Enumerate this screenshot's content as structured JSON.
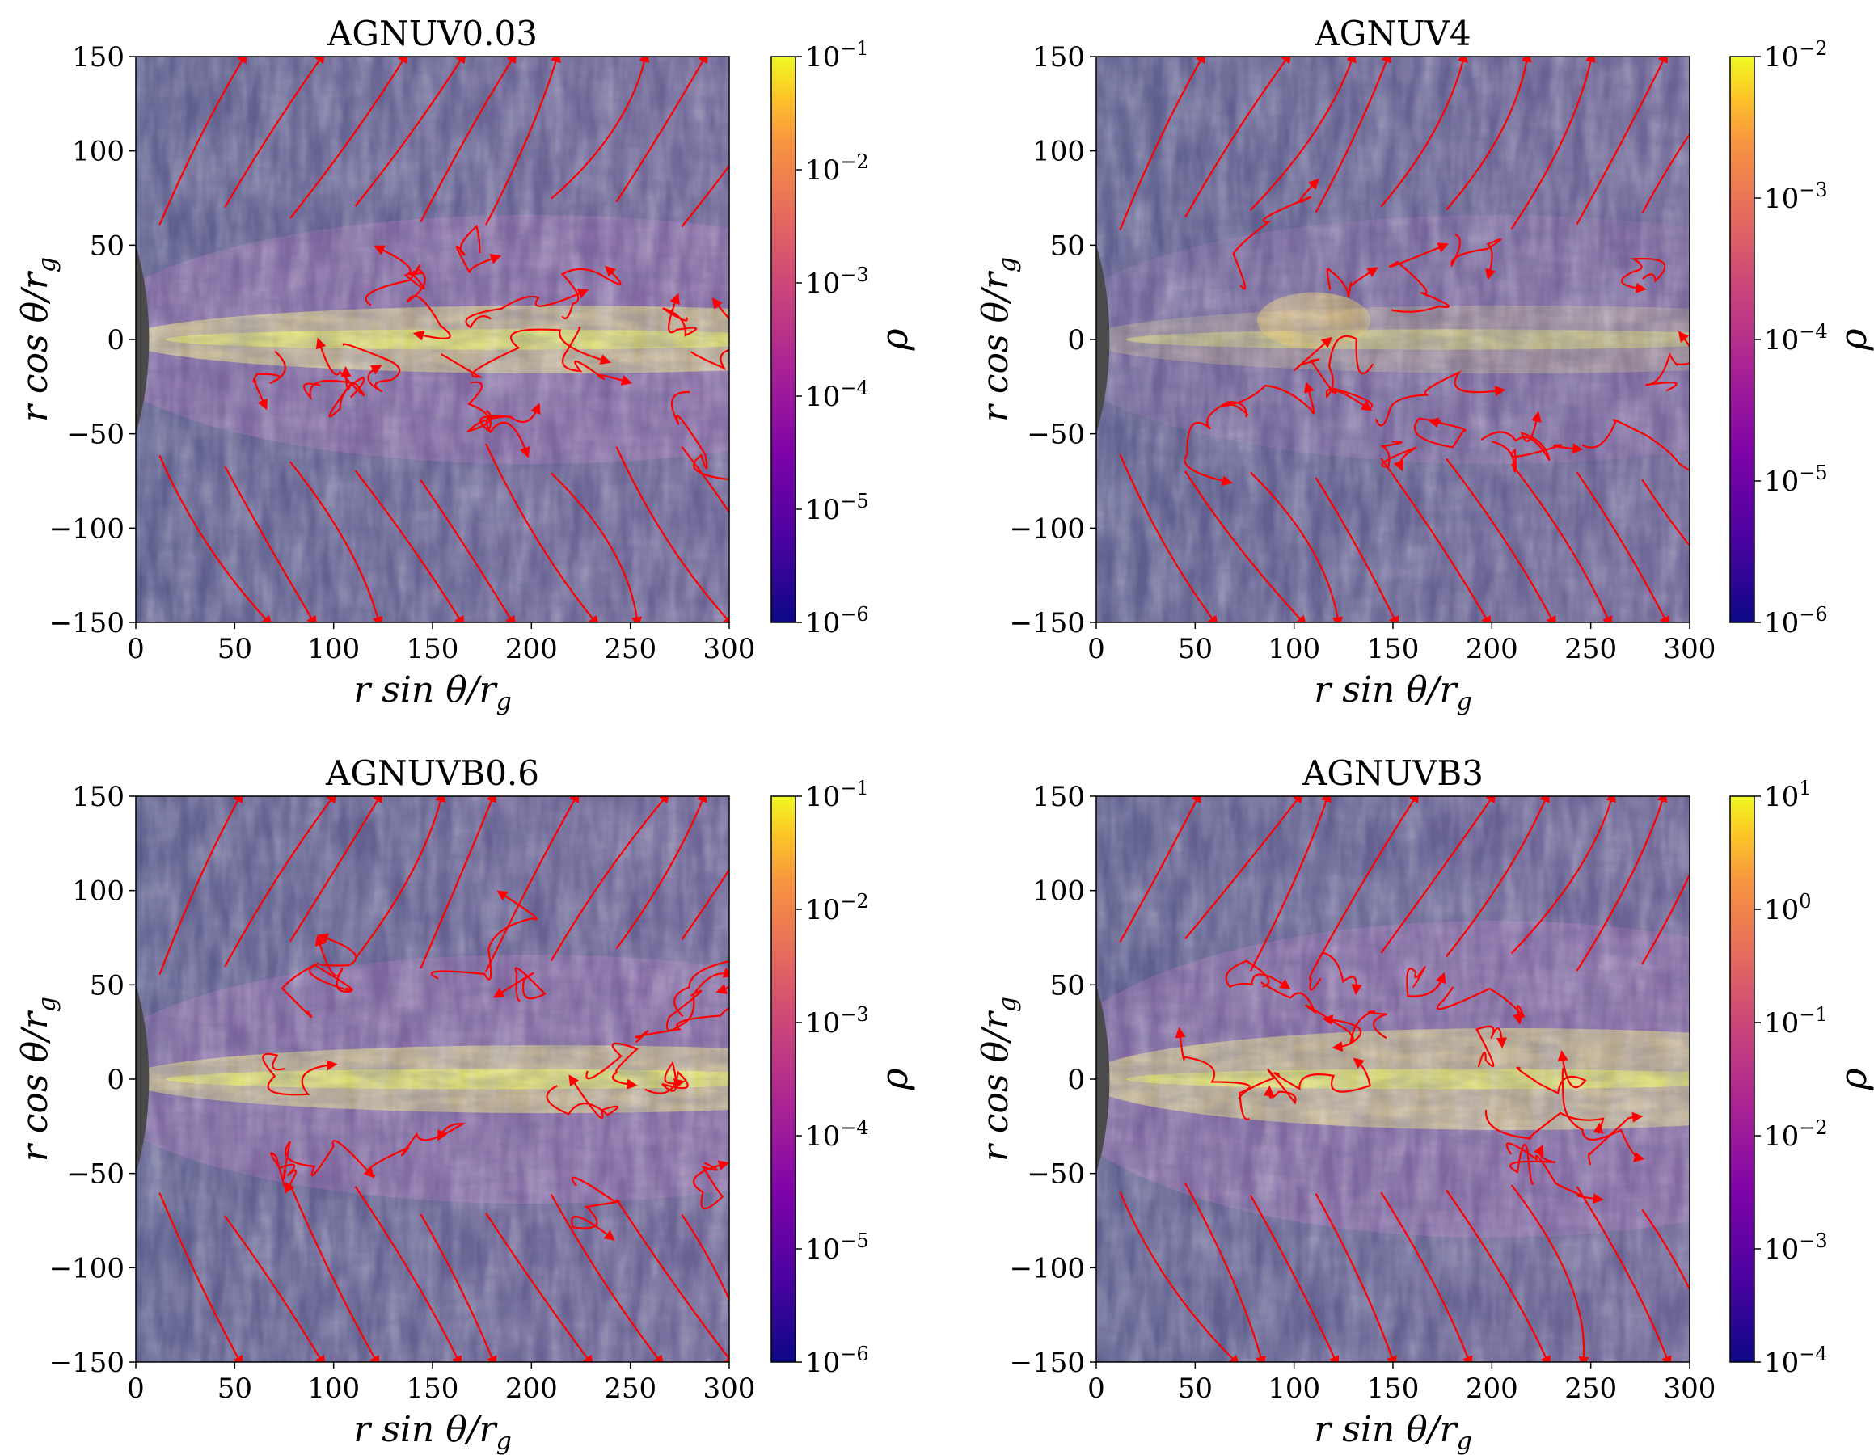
{
  "chart_data": [
    {
      "type": "heatmap",
      "title": "AGNUV0.03",
      "xlabel": "r sin θ/r_g",
      "ylabel": "r cos θ/r_g",
      "xlim": [
        0,
        300
      ],
      "ylim": [
        -150,
        150
      ],
      "xticks": [
        "0",
        "50",
        "100",
        "150",
        "200",
        "250",
        "300"
      ],
      "yticks": [
        "150",
        "100",
        "50",
        "0",
        "−50",
        "−100",
        "−150"
      ],
      "colorbar": {
        "label": "ρ",
        "scale": "log",
        "min_exp": -6,
        "max_exp": -1,
        "ticks": [
          "10^-1",
          "10^-2",
          "10^-3",
          "10^-4",
          "10^-5",
          "10^-6"
        ],
        "colormap": "plasma"
      },
      "inner_boundary_radius": 50,
      "annotations": [
        "red magnetic field lines with arrows",
        "line-integral-convolution texture"
      ]
    },
    {
      "type": "heatmap",
      "title": "AGNUV4",
      "xlabel": "r sin θ/r_g",
      "ylabel": "r cos θ/r_g",
      "xlim": [
        0,
        300
      ],
      "ylim": [
        -150,
        150
      ],
      "xticks": [
        "0",
        "50",
        "100",
        "150",
        "200",
        "250",
        "300"
      ],
      "yticks": [
        "150",
        "100",
        "50",
        "0",
        "−50",
        "−100",
        "−150"
      ],
      "colorbar": {
        "label": "ρ",
        "scale": "log",
        "min_exp": -6,
        "max_exp": -2,
        "ticks": [
          "10^-2",
          "10^-3",
          "10^-4",
          "10^-5",
          "10^-6"
        ],
        "colormap": "plasma"
      },
      "inner_boundary_radius": 50,
      "annotations": [
        "red magnetic field lines with arrows",
        "line-integral-convolution texture"
      ]
    },
    {
      "type": "heatmap",
      "title": "AGNUVB0.6",
      "xlabel": "r sin θ/r_g",
      "ylabel": "r cos θ/r_g",
      "xlim": [
        0,
        300
      ],
      "ylim": [
        -150,
        150
      ],
      "xticks": [
        "0",
        "50",
        "100",
        "150",
        "200",
        "250",
        "300"
      ],
      "yticks": [
        "150",
        "100",
        "50",
        "0",
        "−50",
        "−100",
        "−150"
      ],
      "colorbar": {
        "label": "ρ",
        "scale": "log",
        "min_exp": -6,
        "max_exp": -1,
        "ticks": [
          "10^-1",
          "10^-2",
          "10^-3",
          "10^-4",
          "10^-5",
          "10^-6"
        ],
        "colormap": "plasma"
      },
      "inner_boundary_radius": 50,
      "annotations": [
        "red magnetic field lines with arrows",
        "line-integral-convolution texture"
      ]
    },
    {
      "type": "heatmap",
      "title": "AGNUVB3",
      "xlabel": "r sin θ/r_g",
      "ylabel": "r cos θ/r_g",
      "xlim": [
        0,
        300
      ],
      "ylim": [
        -150,
        150
      ],
      "xticks": [
        "0",
        "50",
        "100",
        "150",
        "200",
        "250",
        "300"
      ],
      "yticks": [
        "150",
        "100",
        "50",
        "0",
        "−50",
        "−100",
        "−150"
      ],
      "colorbar": {
        "label": "ρ",
        "scale": "log",
        "min_exp": -4,
        "max_exp": 1,
        "ticks": [
          "10^1",
          "10^0",
          "10^-1",
          "10^-2",
          "10^-3",
          "10^-4"
        ],
        "colormap": "plasma"
      },
      "inner_boundary_radius": 50,
      "annotations": [
        "red magnetic field lines with arrows",
        "line-integral-convolution texture"
      ]
    }
  ]
}
